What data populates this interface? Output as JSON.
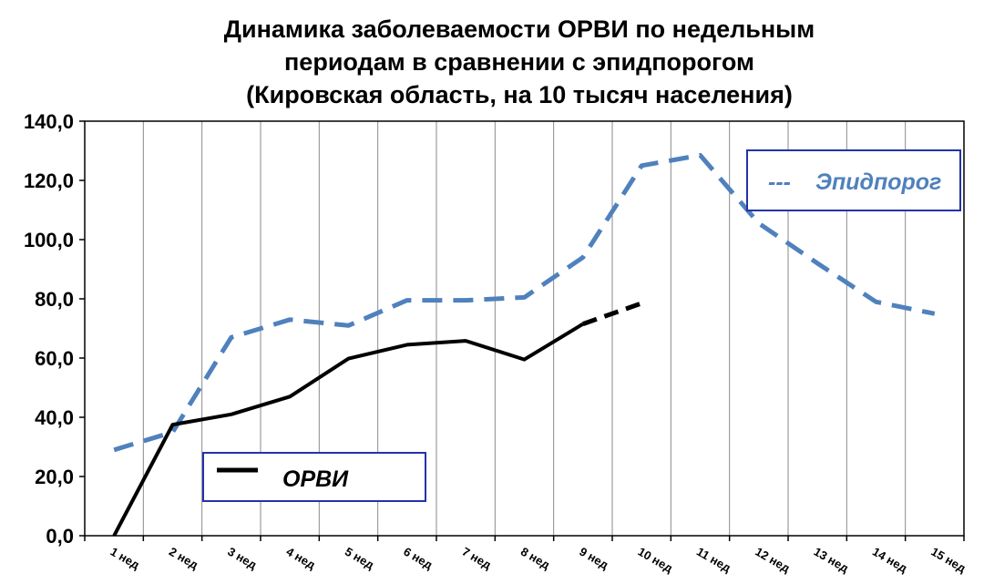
{
  "chart_data": {
    "type": "line",
    "title_lines": [
      "Динамика заболеваемости ОРВИ  по недельным",
      "периодам в сравнении с эпидпорогом",
      "(Кировская область, на 10 тысяч населения)"
    ],
    "xlabel": "",
    "ylabel": "",
    "ylim": [
      0,
      140
    ],
    "y_ticks": [
      "0,0",
      "20,0",
      "40,0",
      "60,0",
      "80,0",
      "100,0",
      "120,0",
      "140,0"
    ],
    "categories": [
      "1 нед",
      "2 нед",
      "3 нед",
      "4 нед",
      "5 нед",
      "6 нед",
      "7 нед",
      "8 нед",
      "9 нед",
      "10 нед",
      "11 нед",
      "12 нед",
      "13 нед",
      "14 нед",
      "15 нед"
    ],
    "grid": "vertical",
    "series": [
      {
        "name": "ОРВИ",
        "color": "#000000",
        "style": "solid",
        "values": [
          0.0,
          37.5,
          41.0,
          47.0,
          59.8,
          64.5,
          65.8,
          59.5,
          71.5,
          78.5,
          null,
          null,
          null,
          null,
          null
        ],
        "dashed_from_index": 8
      },
      {
        "name": "Эпидпорог",
        "color": "#4F81BD",
        "style": "dashed",
        "values": [
          29.0,
          35.0,
          67.0,
          73.0,
          71.0,
          79.5,
          79.5,
          80.5,
          94.0,
          125.0,
          128.5,
          105.5,
          92.0,
          79.0,
          75.0
        ]
      }
    ],
    "legend": [
      {
        "label": "ОРВИ",
        "marker": "solid-line",
        "color": "#000000",
        "placement": "bottom-left"
      },
      {
        "label": "Эпидпорог",
        "marker": "---",
        "color": "#4F81BD",
        "placement": "top-right"
      }
    ]
  }
}
